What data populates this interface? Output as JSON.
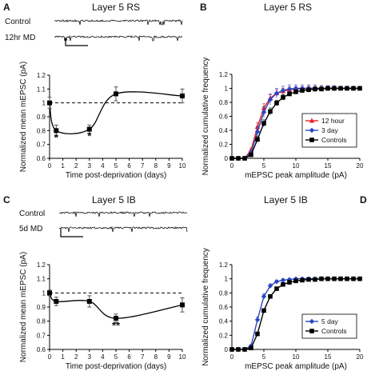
{
  "panels": [
    {
      "id": "A",
      "title": "Layer 5 RS",
      "trace_labels": [
        "Control",
        "12hr MD"
      ],
      "chart_data": {
        "type": "line",
        "xlabel": "Time post-deprivation (days)",
        "ylabel": "Normalized mean mEPSC (pA)",
        "xlim": [
          0,
          10
        ],
        "ylim": [
          0.6,
          1.2
        ],
        "xticks": [
          0,
          1,
          2,
          3,
          4,
          5,
          6,
          7,
          8,
          9,
          10
        ],
        "yticks": [
          0.6,
          0.7,
          0.8,
          0.9,
          1,
          1.1,
          1.2
        ],
        "baseline": 1,
        "series": [
          {
            "x": [
              0,
              0.5,
              3,
              5,
              10
            ],
            "y": [
              1.0,
              0.8,
              0.81,
              1.065,
              1.05
            ],
            "err": [
              0.04,
              0.04,
              0.03,
              0.05,
              0.05
            ],
            "color": "#000000"
          }
        ],
        "annotations": [
          {
            "text": "*",
            "x": 0.5,
            "y": 0.725
          },
          {
            "text": "*",
            "x": 3,
            "y": 0.735
          }
        ]
      }
    },
    {
      "id": "B",
      "title": "Layer 5 RS",
      "chart_data": {
        "type": "line",
        "xlabel": "mEPSC peak amplitude (pA)",
        "ylabel": "Normalized cumulative frequency",
        "xlim": [
          0,
          20
        ],
        "ylim": [
          0,
          1.2
        ],
        "xticks": [
          0,
          5,
          10,
          15,
          20
        ],
        "yticks": [
          0,
          0.2,
          0.4,
          0.6,
          0.8,
          1,
          1.2
        ],
        "legend_position": "bottom-right",
        "x": [
          0,
          1,
          2,
          3,
          4,
          5,
          6,
          7,
          8,
          9,
          10,
          11,
          12,
          13,
          14,
          15,
          16,
          17,
          18,
          19,
          20
        ],
        "series": [
          {
            "name": "12 hour",
            "color": "#e8232a",
            "marker": "triangle",
            "y": [
              0,
              0,
              0,
              0.12,
              0.45,
              0.72,
              0.86,
              0.93,
              0.96,
              0.98,
              0.99,
              0.995,
              1,
              1,
              1,
              1,
              1,
              1,
              1,
              1,
              1
            ],
            "err": [
              0,
              0,
              0,
              0.03,
              0.06,
              0.06,
              0.05,
              0.05,
              0.04,
              0.04,
              0.03,
              0.03,
              0.03,
              0.03,
              0.03,
              0.03,
              0.02,
              0.02,
              0.02,
              0.02,
              0.02
            ]
          },
          {
            "name": "3 day",
            "color": "#2b46c4",
            "marker": "diamond",
            "y": [
              0,
              0,
              0,
              0.08,
              0.38,
              0.66,
              0.84,
              0.93,
              0.97,
              0.99,
              1,
              1,
              1,
              1,
              1,
              1,
              1,
              1,
              1,
              1,
              1
            ],
            "err": [
              0,
              0,
              0,
              0.03,
              0.07,
              0.08,
              0.08,
              0.07,
              0.06,
              0.06,
              0.05,
              0.05,
              0.05,
              0.05,
              0.04,
              0.04,
              0.04,
              0.03,
              0.03,
              0.03,
              0.03
            ]
          },
          {
            "name": "Controls",
            "color": "#000000",
            "marker": "square",
            "y": [
              0,
              0,
              0,
              0.05,
              0.27,
              0.5,
              0.67,
              0.79,
              0.87,
              0.92,
              0.95,
              0.97,
              0.98,
              0.99,
              0.99,
              1,
              1,
              1,
              1,
              1,
              1
            ],
            "err": [
              0,
              0,
              0,
              0.02,
              0.04,
              0.05,
              0.05,
              0.04,
              0.04,
              0.03,
              0.03,
              0.02,
              0.02,
              0.02,
              0.02,
              0.02,
              0.02,
              0.02,
              0.02,
              0.02,
              0.02
            ]
          }
        ]
      }
    },
    {
      "id": "C",
      "title": "Layer 5 IB",
      "trace_labels": [
        "Control",
        "5d MD"
      ],
      "chart_data": {
        "type": "line",
        "xlabel": "Time post-deprivation (days)",
        "ylabel": "Normalized mean mEPSC (pA)",
        "xlim": [
          0,
          10
        ],
        "ylim": [
          0.6,
          1.2
        ],
        "xticks": [
          0,
          1,
          2,
          3,
          4,
          5,
          6,
          7,
          8,
          9,
          10
        ],
        "yticks": [
          0.6,
          0.7,
          0.8,
          0.9,
          1,
          1.1,
          1.2
        ],
        "baseline": 1,
        "series": [
          {
            "x": [
              0,
              0.5,
              3,
              5,
              10
            ],
            "y": [
              1.0,
              0.94,
              0.94,
              0.82,
              0.915
            ],
            "err": [
              0.02,
              0.03,
              0.04,
              0.03,
              0.05
            ],
            "color": "#000000"
          }
        ],
        "annotations": [
          {
            "text": "**",
            "x": 5,
            "y": 0.745
          }
        ]
      }
    },
    {
      "id": "D",
      "title": "Layer 5 IB",
      "chart_data": {
        "type": "line",
        "xlabel": "mEPSC peak amplitude (pA)",
        "ylabel": "Normalized cumulative frequency",
        "xlim": [
          0,
          20
        ],
        "ylim": [
          0,
          1.2
        ],
        "xticks": [
          0,
          5,
          10,
          15,
          20
        ],
        "yticks": [
          0,
          0.2,
          0.4,
          0.6,
          0.8,
          1,
          1.2
        ],
        "legend_position": "bottom-right",
        "x": [
          0,
          1,
          2,
          3,
          4,
          5,
          6,
          7,
          8,
          9,
          10,
          11,
          12,
          13,
          14,
          15,
          16,
          17,
          18,
          19,
          20
        ],
        "series": [
          {
            "name": "5 day",
            "color": "#2b46c4",
            "marker": "diamond",
            "y": [
              0,
              0,
              0,
              0.05,
              0.42,
              0.75,
              0.9,
              0.96,
              0.98,
              0.99,
              1,
              1,
              1,
              1,
              1,
              1,
              1,
              1,
              1,
              1,
              1
            ],
            "err": [
              0,
              0,
              0,
              0.02,
              0.04,
              0.04,
              0.03,
              0.02,
              0.02,
              0.01,
              0.01,
              0.01,
              0.01,
              0.01,
              0.01,
              0.01,
              0.01,
              0.01,
              0.01,
              0.01,
              0.01
            ]
          },
          {
            "name": "Controls",
            "color": "#000000",
            "marker": "square",
            "y": [
              0,
              0,
              0,
              0.02,
              0.22,
              0.55,
              0.75,
              0.86,
              0.92,
              0.95,
              0.97,
              0.98,
              0.99,
              0.99,
              1,
              1,
              1,
              1,
              1,
              1,
              1
            ],
            "err": [
              0,
              0,
              0,
              0.01,
              0.02,
              0.02,
              0.02,
              0.01,
              0.01,
              0.01,
              0.01,
              0.01,
              0.01,
              0.01,
              0.01,
              0.01,
              0.01,
              0.01,
              0.01,
              0.01,
              0.01
            ]
          }
        ]
      }
    }
  ]
}
